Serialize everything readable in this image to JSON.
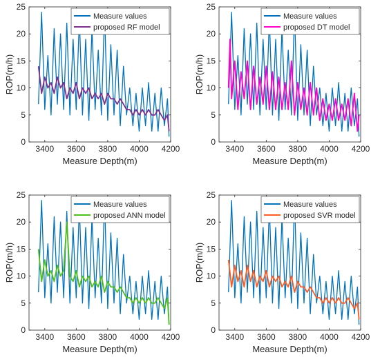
{
  "chart_data": [
    {
      "type": "line",
      "xlabel": "Measure Depth(m)",
      "ylabel": "ROP(m/h)",
      "xlim": [
        3300,
        4200
      ],
      "ylim": [
        0,
        25
      ],
      "xticks": [
        3400,
        3600,
        3800,
        4000,
        4200
      ],
      "yticks": [
        0,
        5,
        10,
        15,
        20,
        25
      ],
      "grid": false,
      "legend_position": "top-right",
      "series": [
        {
          "name": "Measure values",
          "color": "#0072BD",
          "x": [
            3360,
            3380,
            3400,
            3420,
            3440,
            3460,
            3480,
            3500,
            3520,
            3540,
            3560,
            3580,
            3600,
            3620,
            3640,
            3660,
            3680,
            3700,
            3720,
            3740,
            3760,
            3780,
            3800,
            3820,
            3840,
            3860,
            3880,
            3900,
            3920,
            3940,
            3960,
            3980,
            4000,
            4020,
            4040,
            4060,
            4080,
            4100,
            4120,
            4140,
            4160,
            4180,
            4190
          ],
          "y": [
            7,
            24,
            6,
            16,
            5,
            21,
            7,
            20,
            6,
            22,
            5,
            19,
            6,
            23,
            5,
            19,
            4,
            21,
            6,
            17,
            5,
            24,
            4,
            18,
            5,
            17,
            3,
            14,
            5,
            10,
            3,
            9,
            2,
            10,
            3,
            11,
            2,
            9,
            2,
            10,
            3,
            8,
            1
          ]
        },
        {
          "name": "proposed RF model",
          "color": "#7E2F8E",
          "x": [
            3360,
            3380,
            3400,
            3420,
            3440,
            3460,
            3480,
            3500,
            3520,
            3540,
            3560,
            3580,
            3600,
            3620,
            3640,
            3660,
            3680,
            3700,
            3720,
            3740,
            3760,
            3780,
            3800,
            3820,
            3840,
            3860,
            3880,
            3900,
            3920,
            3940,
            3960,
            3980,
            4000,
            4020,
            4040,
            4060,
            4080,
            4100,
            4120,
            4140,
            4160,
            4180,
            4190
          ],
          "y": [
            14,
            9,
            12,
            10,
            11,
            9,
            12,
            10,
            11,
            8,
            10,
            9,
            11,
            8,
            10,
            9,
            10,
            8,
            9,
            8,
            9,
            7,
            9,
            8,
            8,
            7,
            8,
            7,
            6,
            6,
            5,
            6,
            5,
            6,
            5,
            6,
            5,
            5,
            6,
            5,
            4,
            5,
            2
          ]
        }
      ]
    },
    {
      "type": "line",
      "xlabel": "Measure Depth(m)",
      "ylabel": "ROP(m/h)",
      "xlim": [
        3300,
        4200
      ],
      "ylim": [
        0,
        25
      ],
      "xticks": [
        3400,
        3600,
        3800,
        4000,
        4200
      ],
      "yticks": [
        0,
        5,
        10,
        15,
        20,
        25
      ],
      "grid": false,
      "legend_position": "top-right",
      "series": [
        {
          "name": "Measure values",
          "color": "#0072BD",
          "x": [
            3360,
            3380,
            3400,
            3420,
            3440,
            3460,
            3480,
            3500,
            3520,
            3540,
            3560,
            3580,
            3600,
            3620,
            3640,
            3660,
            3680,
            3700,
            3720,
            3740,
            3760,
            3780,
            3800,
            3820,
            3840,
            3860,
            3880,
            3900,
            3920,
            3940,
            3960,
            3980,
            4000,
            4020,
            4040,
            4060,
            4080,
            4100,
            4120,
            4140,
            4160,
            4180,
            4190
          ],
          "y": [
            7,
            24,
            6,
            16,
            5,
            21,
            7,
            20,
            6,
            22,
            5,
            19,
            6,
            23,
            5,
            19,
            4,
            21,
            6,
            17,
            5,
            24,
            4,
            18,
            5,
            17,
            3,
            14,
            5,
            10,
            3,
            9,
            2,
            10,
            3,
            11,
            2,
            9,
            2,
            10,
            3,
            8,
            1
          ]
        },
        {
          "name": "proposed DT model",
          "color": "#FF00C8",
          "x": [
            3360,
            3370,
            3380,
            3400,
            3420,
            3440,
            3460,
            3480,
            3500,
            3520,
            3540,
            3560,
            3580,
            3600,
            3620,
            3640,
            3660,
            3680,
            3700,
            3720,
            3740,
            3760,
            3780,
            3800,
            3820,
            3840,
            3860,
            3880,
            3900,
            3920,
            3940,
            3960,
            3980,
            4000,
            4020,
            4040,
            4060,
            4080,
            4100,
            4120,
            4140,
            4160,
            4180,
            4190
          ],
          "y": [
            10,
            19,
            8,
            15,
            6,
            13,
            8,
            15,
            6,
            14,
            7,
            12,
            7,
            14,
            6,
            13,
            6,
            12,
            6,
            11,
            6,
            15,
            5,
            11,
            6,
            10,
            5,
            11,
            5,
            10,
            4,
            8,
            4,
            7,
            4,
            8,
            4,
            7,
            4,
            8,
            3,
            9,
            2,
            5
          ]
        }
      ]
    },
    {
      "type": "line",
      "xlabel": "Measure Depth(m)",
      "ylabel": "ROP(m/h)",
      "xlim": [
        3300,
        4200
      ],
      "ylim": [
        0,
        25
      ],
      "xticks": [
        3400,
        3600,
        3800,
        4000,
        4200
      ],
      "yticks": [
        0,
        5,
        10,
        15,
        20,
        25
      ],
      "grid": false,
      "legend_position": "top-right",
      "series": [
        {
          "name": "Measure values",
          "color": "#0072BD",
          "x": [
            3360,
            3380,
            3400,
            3420,
            3440,
            3460,
            3480,
            3500,
            3520,
            3540,
            3560,
            3580,
            3600,
            3620,
            3640,
            3660,
            3680,
            3700,
            3720,
            3740,
            3760,
            3780,
            3800,
            3820,
            3840,
            3860,
            3880,
            3900,
            3920,
            3940,
            3960,
            3980,
            4000,
            4020,
            4040,
            4060,
            4080,
            4100,
            4120,
            4140,
            4160,
            4180,
            4190
          ],
          "y": [
            7,
            24,
            6,
            16,
            5,
            21,
            7,
            20,
            6,
            22,
            5,
            19,
            6,
            23,
            5,
            19,
            4,
            21,
            6,
            17,
            5,
            24,
            4,
            18,
            5,
            17,
            3,
            14,
            5,
            10,
            3,
            9,
            2,
            10,
            3,
            11,
            2,
            9,
            2,
            10,
            3,
            8,
            1
          ]
        },
        {
          "name": "proposed ANN model",
          "color": "#4DBF1A",
          "x": [
            3360,
            3380,
            3400,
            3420,
            3440,
            3460,
            3480,
            3500,
            3520,
            3540,
            3560,
            3580,
            3600,
            3620,
            3640,
            3660,
            3680,
            3700,
            3720,
            3740,
            3760,
            3780,
            3800,
            3820,
            3840,
            3860,
            3880,
            3900,
            3920,
            3940,
            3960,
            3980,
            4000,
            4020,
            4040,
            4060,
            4080,
            4100,
            4120,
            4140,
            4160,
            4180,
            4190
          ],
          "y": [
            15,
            9,
            13,
            10,
            11,
            9,
            12,
            10,
            11,
            20,
            10,
            9,
            11,
            8,
            10,
            9,
            10,
            8,
            9,
            8,
            10,
            7,
            9,
            8,
            8,
            7,
            8,
            7,
            6,
            6,
            5,
            6,
            5,
            6,
            5,
            6,
            5,
            5,
            6,
            5,
            4,
            6,
            1
          ]
        }
      ]
    },
    {
      "type": "line",
      "xlabel": "Measure Depth(m)",
      "ylabel": "ROP(m/h)",
      "xlim": [
        3300,
        4200
      ],
      "ylim": [
        0,
        25
      ],
      "xticks": [
        3400,
        3600,
        3800,
        4000,
        4200
      ],
      "yticks": [
        0,
        5,
        10,
        15,
        20,
        25
      ],
      "grid": false,
      "legend_position": "top-right",
      "series": [
        {
          "name": "Measure values",
          "color": "#0072BD",
          "x": [
            3360,
            3380,
            3400,
            3420,
            3440,
            3460,
            3480,
            3500,
            3520,
            3540,
            3560,
            3580,
            3600,
            3620,
            3640,
            3660,
            3680,
            3700,
            3720,
            3740,
            3760,
            3780,
            3800,
            3820,
            3840,
            3860,
            3880,
            3900,
            3920,
            3940,
            3960,
            3980,
            4000,
            4020,
            4040,
            4060,
            4080,
            4100,
            4120,
            4140,
            4160,
            4180,
            4190
          ],
          "y": [
            7,
            24,
            6,
            16,
            5,
            21,
            7,
            20,
            6,
            22,
            5,
            19,
            6,
            23,
            5,
            19,
            4,
            21,
            6,
            17,
            5,
            24,
            4,
            18,
            5,
            17,
            3,
            14,
            5,
            10,
            3,
            9,
            2,
            10,
            3,
            11,
            2,
            9,
            2,
            10,
            3,
            8,
            1
          ]
        },
        {
          "name": "proposed SVR model",
          "color": "#FF5A1F",
          "x": [
            3360,
            3380,
            3400,
            3420,
            3440,
            3460,
            3480,
            3500,
            3520,
            3540,
            3560,
            3580,
            3600,
            3620,
            3640,
            3660,
            3680,
            3700,
            3720,
            3740,
            3760,
            3780,
            3800,
            3820,
            3840,
            3860,
            3880,
            3900,
            3920,
            3940,
            3960,
            3980,
            4000,
            4020,
            4040,
            4060,
            4080,
            4100,
            4120,
            4140,
            4160,
            4180,
            4190
          ],
          "y": [
            13,
            8,
            12,
            9,
            11,
            8,
            12,
            9,
            11,
            8,
            10,
            9,
            11,
            8,
            10,
            9,
            10,
            8,
            9,
            8,
            10,
            7,
            9,
            8,
            8,
            7,
            8,
            7,
            6,
            6,
            5,
            6,
            5,
            6,
            5,
            6,
            5,
            5,
            6,
            5,
            4,
            5,
            2
          ]
        }
      ]
    }
  ]
}
